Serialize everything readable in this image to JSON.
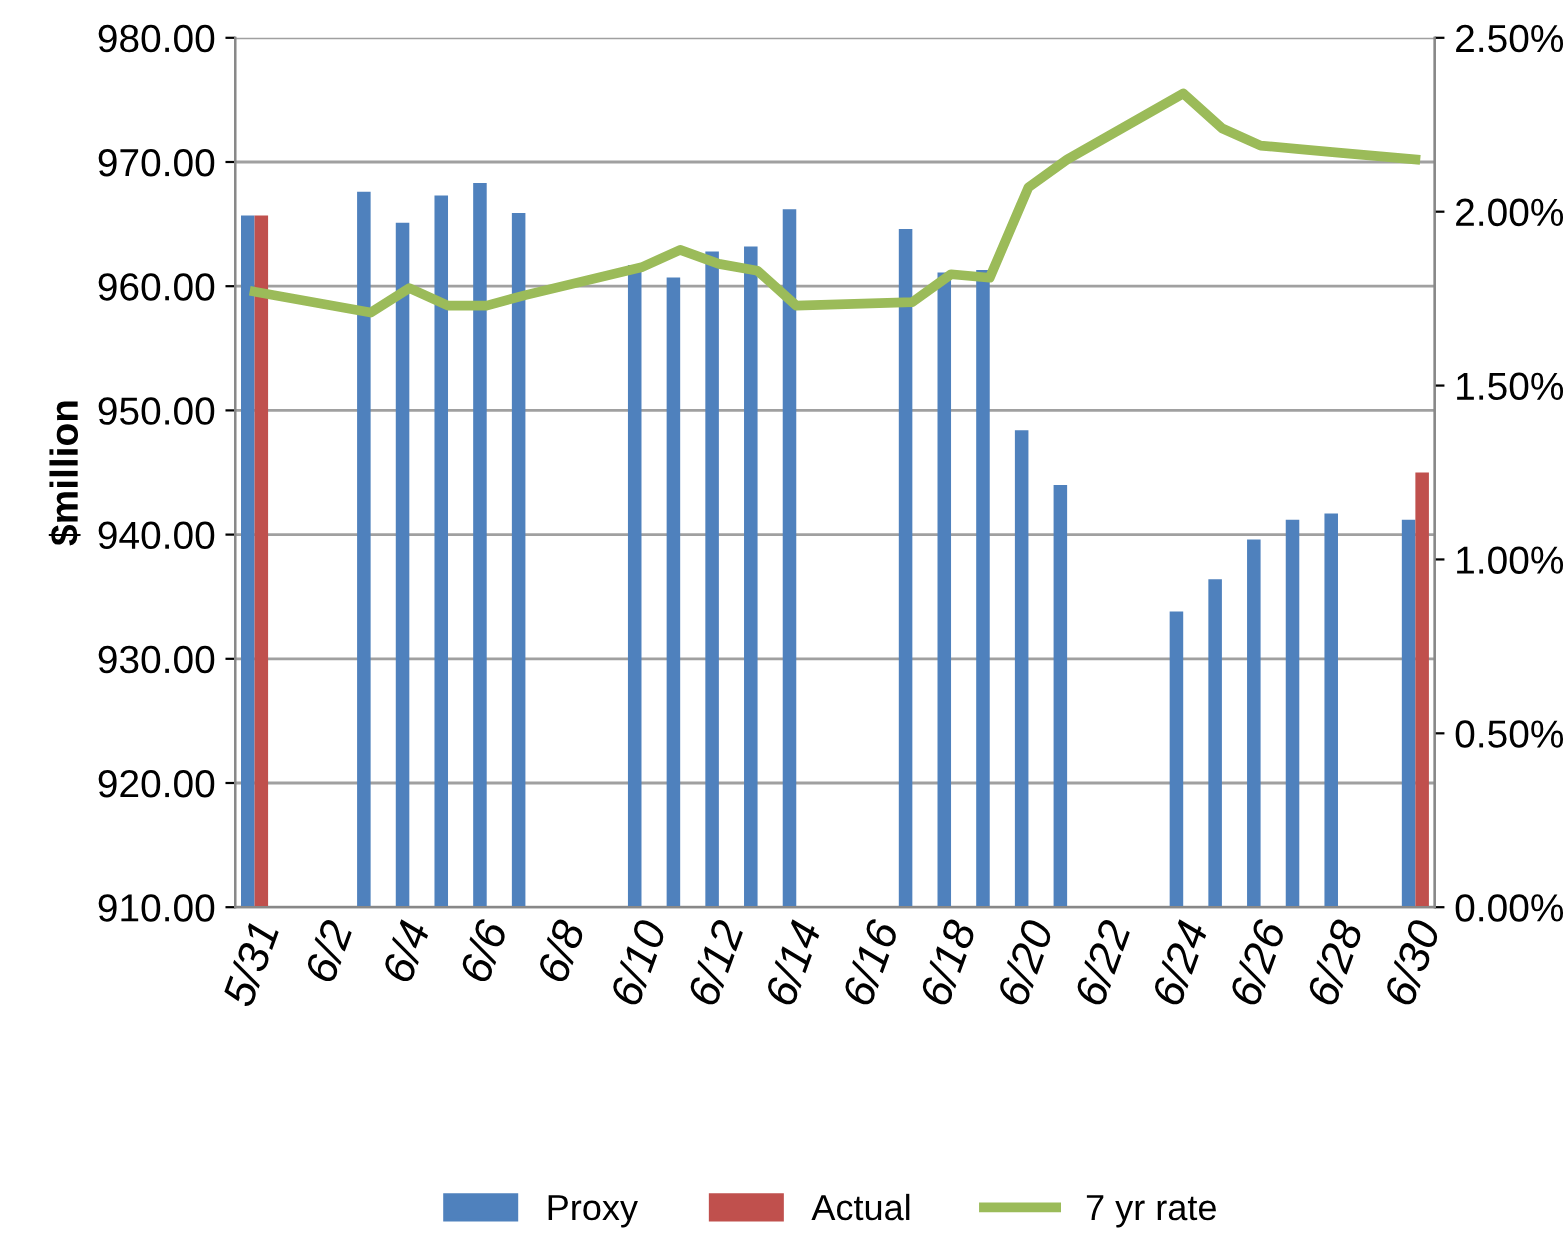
{
  "chart_data": {
    "type": "bar",
    "ylabel": "$million",
    "categories": [
      "5/31",
      null,
      "6/2",
      null,
      "6/4",
      null,
      "6/6",
      null,
      "6/8",
      null,
      "6/10",
      null,
      "6/12",
      null,
      "6/14",
      null,
      "6/16",
      null,
      "6/18",
      null,
      "6/20",
      null,
      "6/22",
      null,
      "6/24",
      null,
      "6/26",
      null,
      "6/28",
      null,
      "6/30"
    ],
    "series": [
      {
        "name": "Proxy",
        "color": "#4f81bd",
        "values": [
          965.7,
          null,
          null,
          967.6,
          965.1,
          967.3,
          968.3,
          965.9,
          null,
          null,
          961.7,
          960.7,
          962.8,
          963.2,
          966.2,
          null,
          null,
          964.6,
          961.1,
          961.3,
          948.4,
          944.0,
          null,
          null,
          933.8,
          936.4,
          939.6,
          941.2,
          941.7,
          null,
          941.2
        ]
      },
      {
        "name": "Actual",
        "type": "bar",
        "color": "#c0504d",
        "values": [
          965.7,
          null,
          null,
          null,
          null,
          null,
          null,
          null,
          null,
          null,
          null,
          null,
          null,
          null,
          null,
          null,
          null,
          null,
          null,
          null,
          null,
          null,
          null,
          null,
          null,
          null,
          null,
          null,
          null,
          null,
          945.0
        ]
      },
      {
        "name": "7 yr rate",
        "type": "line",
        "axis": "y2",
        "color": "#9bbb59",
        "values": [
          1.77,
          null,
          null,
          1.71,
          1.78,
          1.73,
          1.73,
          1.76,
          null,
          null,
          1.84,
          1.89,
          1.85,
          1.83,
          1.73,
          null,
          null,
          1.74,
          1.82,
          1.81,
          2.07,
          2.15,
          null,
          null,
          2.34,
          2.24,
          2.19,
          2.18,
          2.17,
          null,
          2.15
        ]
      }
    ],
    "ylim": [
      910,
      980
    ],
    "yticks": [
      {
        "value": 910,
        "label": "910.00"
      },
      {
        "value": 920,
        "label": "920.00"
      },
      {
        "value": 930,
        "label": "930.00"
      },
      {
        "value": 940,
        "label": "940.00"
      },
      {
        "value": 950,
        "label": "950.00"
      },
      {
        "value": 960,
        "label": "960.00"
      },
      {
        "value": 970,
        "label": "970.00"
      },
      {
        "value": 980,
        "label": "980.00"
      }
    ],
    "y2lim": [
      0,
      2.5
    ],
    "y2ticks": [
      {
        "value": 0,
        "label": "0.00%"
      },
      {
        "value": 0.5,
        "label": "0.50%"
      },
      {
        "value": 1.0,
        "label": "1.00%"
      },
      {
        "value": 1.5,
        "label": "1.50%"
      },
      {
        "value": 2.0,
        "label": "2.00%"
      },
      {
        "value": 2.5,
        "label": "2.50%"
      }
    ],
    "grid": "y",
    "legend": "bottom",
    "marker": "none",
    "line_style": "solid"
  }
}
